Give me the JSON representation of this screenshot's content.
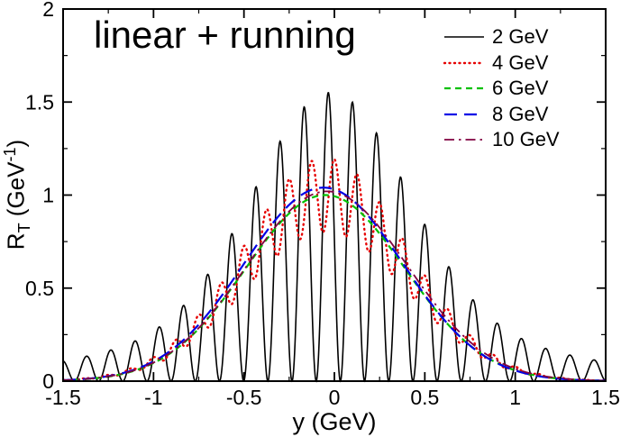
{
  "figure": {
    "background": "#ffffff",
    "axis_color": "#000000"
  },
  "chart_data": {
    "type": "line",
    "title": "linear + running",
    "xlabel": "y (GeV)",
    "ylabel": "R_T (GeV⁻¹)",
    "ylabel_parts": {
      "base": "R",
      "sub": "T",
      "mid": " (GeV",
      "sup": "-1",
      "end": ")"
    },
    "xlim": [
      -1.5,
      1.5
    ],
    "ylim": [
      0,
      2
    ],
    "xticks": [
      -1.5,
      -1,
      -0.5,
      0,
      0.5,
      1,
      1.5
    ],
    "xtick_labels": [
      "-1.5",
      "-1",
      "-0.5",
      "0",
      "0.5",
      "1",
      "1.5"
    ],
    "xminor": [
      -1.25,
      -0.75,
      -0.25,
      0.25,
      0.75,
      1.25
    ],
    "yticks": [
      0,
      0.5,
      1,
      1.5,
      2
    ],
    "ytick_labels": [
      "0",
      "0.5",
      "1",
      "1.5",
      "2"
    ],
    "yminor": [
      0.25,
      0.75,
      1.25,
      1.75
    ],
    "grid": false,
    "legend_position": "top-right",
    "smooth_shape_x": [
      -1.5,
      -1.25,
      -1.0,
      -0.75,
      -0.5,
      -0.25,
      0,
      0.25,
      0.5,
      0.75,
      1.0,
      1.25,
      1.5
    ],
    "smooth_shape_normalized": [
      0.0,
      0.02,
      0.1,
      0.29,
      0.6,
      0.92,
      1.0,
      0.81,
      0.47,
      0.2,
      0.06,
      0.01,
      0.0
    ],
    "series": [
      {
        "name": "2 GeV",
        "color": "#000000",
        "line_style": "solid",
        "width": 1.6,
        "dash": "",
        "peak_height": 1.55,
        "peak_x": 0.1,
        "oscillation_period": 0.134,
        "model": {
          "type": "gauss2_cos2",
          "A": 1.45,
          "c": -0.02,
          "w1": 0.87,
          "s1": 0.42,
          "w2": 0.2,
          "s2": 1.05,
          "omega": 23.5,
          "phi": 0.1
        }
      },
      {
        "name": "4 GeV",
        "color": "#e60000",
        "line_style": "dotted",
        "width": 2.4,
        "dash": "1 4.5",
        "linecap": "round",
        "peak_height": 1.2,
        "peak_x": 0.0,
        "oscillation_period": 0.126,
        "model": {
          "type": "gauss_mod",
          "A": 1.0,
          "c": -0.05,
          "sigma": 0.45,
          "m": 0.2,
          "omega": 50,
          "phi": 0.0
        }
      },
      {
        "name": "6 GeV",
        "color": "#00c000",
        "line_style": "dashed",
        "width": 2.2,
        "dash": "7 5",
        "peak_height": 1.0,
        "peak_x": -0.05,
        "model": {
          "type": "gauss",
          "A": 1.0,
          "c": -0.05,
          "sigma": 0.44
        }
      },
      {
        "name": "8 GeV",
        "color": "#0000e6",
        "line_style": "long-dashed",
        "width": 2.2,
        "dash": "14 8",
        "peak_height": 1.04,
        "peak_x": -0.06,
        "model": {
          "type": "gauss",
          "A": 1.04,
          "c": -0.06,
          "sigma": 0.44
        }
      },
      {
        "name": "10 GeV",
        "color": "#800040",
        "line_style": "dash-dot",
        "width": 1.8,
        "dash": "11 5 2.5 5",
        "peak_height": 1.02,
        "peak_x": -0.04,
        "model": {
          "type": "gauss",
          "A": 1.02,
          "c": -0.04,
          "sigma": 0.445
        }
      }
    ]
  }
}
